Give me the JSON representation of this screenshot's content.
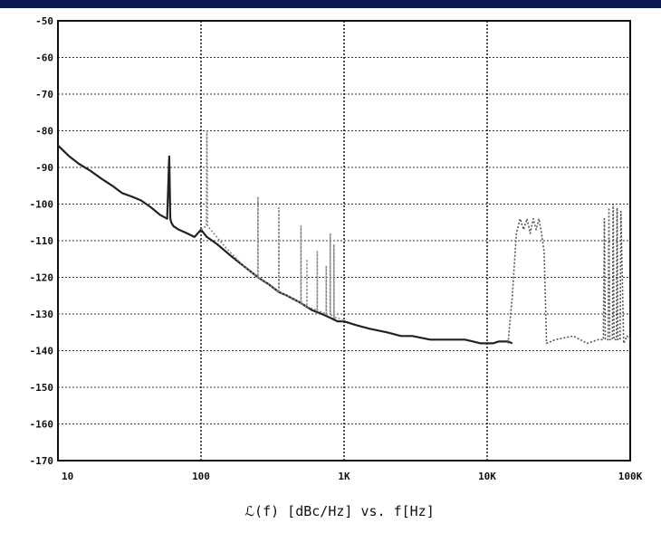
{
  "window": {
    "title_bar_color": "#0a1b52"
  },
  "chart_data": {
    "type": "line",
    "title": "",
    "xlabel": "ℒ(f) [dBc/Hz] vs. f[Hz]",
    "ylabel": "",
    "xscale": "log",
    "xlim": [
      10,
      100000
    ],
    "ylim": [
      -170,
      -50
    ],
    "grid": true,
    "legend": "none",
    "x_tick_labels": [
      "10",
      "100",
      "1K",
      "10K",
      "100K"
    ],
    "y_tick_labels": [
      "-50",
      "-60",
      "-70",
      "-80",
      "-90",
      "-100",
      "-110",
      "-120",
      "-130",
      "-140",
      "-150",
      "-160",
      "-170"
    ],
    "series": [
      {
        "color": "#222222",
        "style": "solid",
        "x": [
          10,
          12,
          14,
          17,
          20,
          24,
          28,
          33,
          38,
          45,
          52,
          58,
          60,
          61,
          62,
          64,
          70,
          80,
          90,
          100,
          110,
          130,
          160,
          200,
          250,
          300,
          350,
          400,
          500,
          600,
          700,
          800,
          900,
          1000,
          1200,
          1500,
          2000,
          2500,
          3000,
          4000,
          5000,
          6000,
          7000,
          8000,
          9000,
          10000,
          11000,
          12000,
          13000,
          14000,
          15000
        ],
        "y": [
          -84,
          -87,
          -89,
          -91,
          -93,
          -95,
          -97,
          -98,
          -99,
          -101,
          -103,
          -104,
          -87,
          -104,
          -105,
          -106,
          -107,
          -108,
          -109,
          -107,
          -109,
          -111,
          -114,
          -117,
          -120,
          -122,
          -124,
          -125,
          -127,
          -129,
          -130,
          -131,
          -132,
          -132,
          -133,
          -134,
          -135,
          -136,
          -136,
          -137,
          -137,
          -137,
          -137,
          -137.5,
          -138,
          -138,
          -138,
          -137.5,
          -137.5,
          -137.5,
          -138
        ]
      },
      {
        "color": "#888888",
        "style": "dotted",
        "x": [
          100,
          109,
          110,
          111,
          150,
          200,
          249,
          250,
          251,
          300,
          349,
          350,
          351,
          400,
          499,
          500,
          501,
          549,
          550,
          551,
          649,
          650,
          651,
          749,
          750,
          751,
          799,
          800,
          801,
          849,
          850,
          851,
          900,
          1000
        ],
        "y": [
          -107,
          -106,
          -80,
          -106,
          -112,
          -117,
          -120,
          -98,
          -120,
          -122,
          -124,
          -101,
          -124,
          -125,
          -127,
          -106,
          -127,
          -128,
          -115,
          -128,
          -129,
          -113,
          -129,
          -130,
          -117,
          -130,
          -130,
          -108,
          -130,
          -131,
          -111,
          -131,
          -131,
          -132
        ]
      },
      {
        "color": "#555555",
        "style": "dotted",
        "x": [
          14000,
          15000,
          16000,
          17000,
          18000,
          19000,
          20000,
          21000,
          22000,
          23000,
          24000,
          25000,
          26000,
          30000,
          40000,
          50000,
          60000,
          65000,
          66000,
          67000,
          70000,
          71000,
          72000,
          75000,
          76000,
          77000,
          80000,
          81000,
          82000,
          85000,
          86000,
          90000,
          95000,
          100000
        ],
        "y": [
          -138,
          -125,
          -108,
          -104,
          -107,
          -104,
          -108,
          -104,
          -107,
          -104,
          -108,
          -113,
          -138,
          -137,
          -136,
          -138,
          -137,
          -137,
          -104,
          -137,
          -137,
          -101,
          -137,
          -137,
          -100,
          -137,
          -137,
          -101,
          -137,
          -137,
          -102,
          -138,
          -136,
          -137
        ]
      }
    ]
  }
}
